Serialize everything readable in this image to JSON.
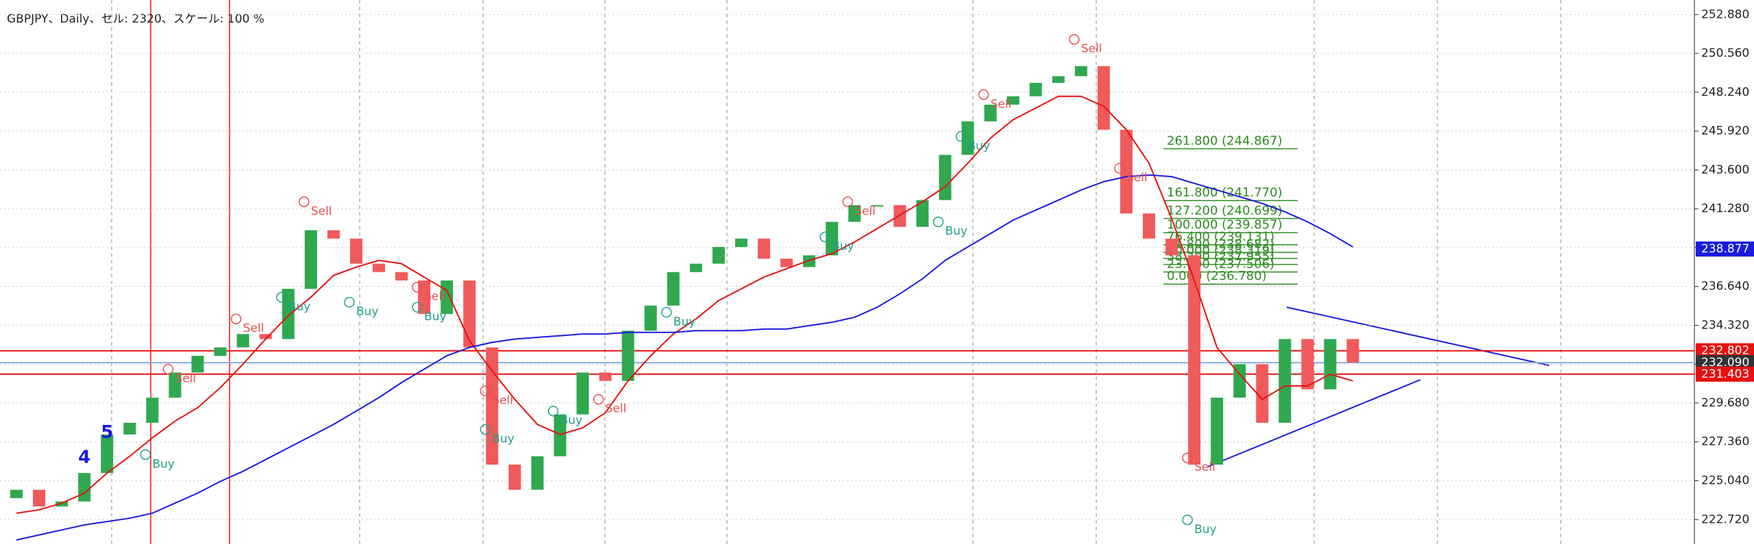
{
  "chart_data": {
    "type": "candlestick",
    "title": "GBPJPY、Daily、セル: 2320、スケール: 100 %",
    "up_color": "#2fa84f",
    "down_color": "#f05a5a",
    "open": [
      224.0,
      224.5,
      223.5,
      223.8,
      225.5,
      227.8,
      228.5,
      230,
      231.5,
      232.5,
      233,
      233.8,
      233.5,
      236.5,
      240,
      239.5,
      238,
      237.5,
      237,
      235,
      237,
      233,
      226,
      224.5,
      226.5,
      229,
      231.5,
      231,
      234,
      235.5,
      237.5,
      238,
      239,
      239.5,
      238.3,
      237.8,
      238.5,
      240.5,
      241.5,
      241.5,
      240.2,
      241.8,
      244.5,
      246.5,
      247.5,
      248,
      248.8,
      249.2,
      249.8,
      246,
      241,
      239.5,
      238.5,
      226,
      230,
      232,
      228.5,
      233.5,
      230.5,
      233.5
    ],
    "close": [
      224.5,
      223.5,
      223.8,
      225.5,
      227.8,
      228.5,
      230,
      231.5,
      232.5,
      233,
      233.8,
      233.5,
      236.5,
      240,
      239.5,
      238,
      237.5,
      237,
      235,
      237,
      233,
      226,
      224.5,
      226.5,
      229,
      231.5,
      231,
      234,
      235.5,
      237.5,
      238,
      239,
      239.5,
      238.3,
      237.8,
      238.5,
      240.5,
      241.5,
      241.5,
      240.2,
      241.8,
      244.5,
      246.5,
      247.5,
      248,
      248.8,
      249.2,
      249.8,
      246,
      241,
      239.5,
      238.5,
      226,
      230,
      232,
      228.5,
      233.5,
      230.5,
      233.5,
      232.1
    ],
    "overlays": [
      {
        "color": "#e81010",
        "values": [
          223.1,
          223.3,
          223.7,
          224.3,
          225.5,
          226.5,
          227.6,
          228.6,
          229.4,
          230.6,
          232.0,
          233.5,
          234.9,
          236.0,
          237.3,
          237.8,
          238.2,
          238.0,
          237.2,
          236.4,
          233.4,
          231.6,
          229.9,
          228.4,
          227.8,
          228.2,
          229.1,
          231.0,
          232.5,
          233.8,
          234.7,
          235.8,
          236.5,
          237.2,
          237.7,
          238.2,
          238.6,
          239.3,
          240.1,
          240.9,
          241.7,
          242.6,
          244.0,
          245.5,
          246.6,
          247.3,
          248.0,
          248.0,
          247.4,
          246.0,
          244.0,
          240.7,
          237.0,
          233.0,
          231.4,
          229.9,
          230.7,
          230.7,
          231.4,
          231.0
        ]
      },
      {
        "color": "#1a1ae0",
        "values": [
          221.5,
          221.8,
          222.1,
          222.4,
          222.6,
          222.8,
          223.1,
          223.7,
          224.3,
          225.0,
          225.6,
          226.3,
          227.0,
          227.7,
          228.4,
          229.2,
          230.0,
          230.9,
          231.7,
          232.5,
          233.0,
          233.3,
          233.5,
          233.6,
          233.7,
          233.8,
          233.8,
          233.9,
          233.9,
          233.9,
          234.0,
          234.0,
          234.0,
          234.1,
          234.1,
          234.3,
          234.5,
          234.8,
          235.4,
          236.2,
          237.1,
          238.2,
          239.0,
          239.8,
          240.6,
          241.2,
          241.8,
          242.4,
          242.9,
          243.2,
          243.3,
          243.2,
          242.8,
          242.4,
          242.0,
          241.6,
          241.1,
          240.5,
          239.8,
          239.0
        ]
      }
    ],
    "ylim": [
      221.26,
      253.75
    ],
    "yticks": [
      {
        "value": 222.72,
        "label": "222.720"
      },
      {
        "value": 225.04,
        "label": "225.040"
      },
      {
        "value": 227.36,
        "label": "227.360"
      },
      {
        "value": 229.68,
        "label": "229.680"
      },
      {
        "value": 232.0,
        "label": "232.000"
      },
      {
        "value": 234.32,
        "label": "234.320"
      },
      {
        "value": 236.64,
        "label": "236.640"
      },
      {
        "value": 238.96,
        "label": "238.960"
      },
      {
        "value": 241.28,
        "label": "241.280"
      },
      {
        "value": 243.6,
        "label": "243.600"
      },
      {
        "value": 245.92,
        "label": "245.920"
      },
      {
        "value": 248.24,
        "label": "248.240"
      },
      {
        "value": 250.56,
        "label": "250.560"
      },
      {
        "value": 252.88,
        "label": "252.880"
      }
    ],
    "grid": true,
    "price_tags": [
      {
        "value": 238.877,
        "label": "238.877",
        "color": "#1a1ae0"
      },
      {
        "value": 232.802,
        "label": "232.802",
        "color": "#e81010",
        "line_color": "#e81010"
      },
      {
        "value": 232.09,
        "label": "232.090",
        "color": "#333333",
        "line_color": "#8fb0e0"
      },
      {
        "value": 231.403,
        "label": "231.403",
        "color": "#e81010",
        "line_color": "#e81010"
      }
    ],
    "fibonacci": {
      "color": "#2e8b22",
      "levels": [
        {
          "label": "261.800 (244.867)",
          "value": 244.867
        },
        {
          "label": "161.800 (241.770)",
          "value": 241.77
        },
        {
          "label": "127.200 (240.699)",
          "value": 240.699
        },
        {
          "label": "100.000 (239.857)",
          "value": 239.857
        },
        {
          "label": "76.400 (239.131)",
          "value": 239.131
        },
        {
          "label": "61.800 (238.682)",
          "value": 238.682
        },
        {
          "label": "50.000 (238.319)",
          "value": 238.319
        },
        {
          "label": "38.200 (237.955)",
          "value": 237.955
        },
        {
          "label": "23.600 (237.506)",
          "value": 237.506
        },
        {
          "label": "0.000 (236.780)",
          "value": 236.78
        }
      ]
    },
    "signal_colors": {
      "Sell": "#e85050",
      "Buy": "#22a08c"
    },
    "signals": [
      {
        "index": 13,
        "value": 241.7,
        "label": "Sell"
      },
      {
        "index": 12,
        "value": 236.0,
        "label": "Buy"
      },
      {
        "index": 15,
        "value": 235.7,
        "label": "Buy"
      },
      {
        "index": 10,
        "value": 234.7,
        "label": "Sell"
      },
      {
        "index": 7,
        "value": 231.7,
        "label": "Sell"
      },
      {
        "index": 6,
        "value": 226.6,
        "label": "Buy"
      },
      {
        "index": 18,
        "value": 236.6,
        "label": "Sell"
      },
      {
        "index": 18,
        "value": 235.4,
        "label": "Buy"
      },
      {
        "index": 21,
        "value": 230.4,
        "label": "Sell"
      },
      {
        "index": 21,
        "value": 228.1,
        "label": "Buy"
      },
      {
        "index": 24,
        "value": 229.2,
        "label": "Buy"
      },
      {
        "index": 26,
        "value": 229.9,
        "label": "Sell"
      },
      {
        "index": 29,
        "value": 235.1,
        "label": "Buy"
      },
      {
        "index": 36,
        "value": 239.6,
        "label": "Buy"
      },
      {
        "index": 37,
        "value": 241.7,
        "label": "Sell"
      },
      {
        "index": 41,
        "value": 240.5,
        "label": "Buy"
      },
      {
        "index": 43,
        "value": 248.1,
        "label": "Sell"
      },
      {
        "index": 42,
        "value": 245.6,
        "label": "Buy"
      },
      {
        "index": 47,
        "value": 251.4,
        "label": "Sell"
      },
      {
        "index": 49,
        "value": 243.7,
        "label": "Sell"
      },
      {
        "index": 52,
        "value": 222.7,
        "label": "Buy"
      },
      {
        "index": 52,
        "value": 226.4,
        "label": "Sell"
      }
    ],
    "wave_color": "#1a1ae0",
    "wave_labels": [
      {
        "index": 3,
        "value": 226.4,
        "label": "4"
      },
      {
        "index": 4,
        "value": 227.9,
        "label": "5"
      }
    ]
  }
}
